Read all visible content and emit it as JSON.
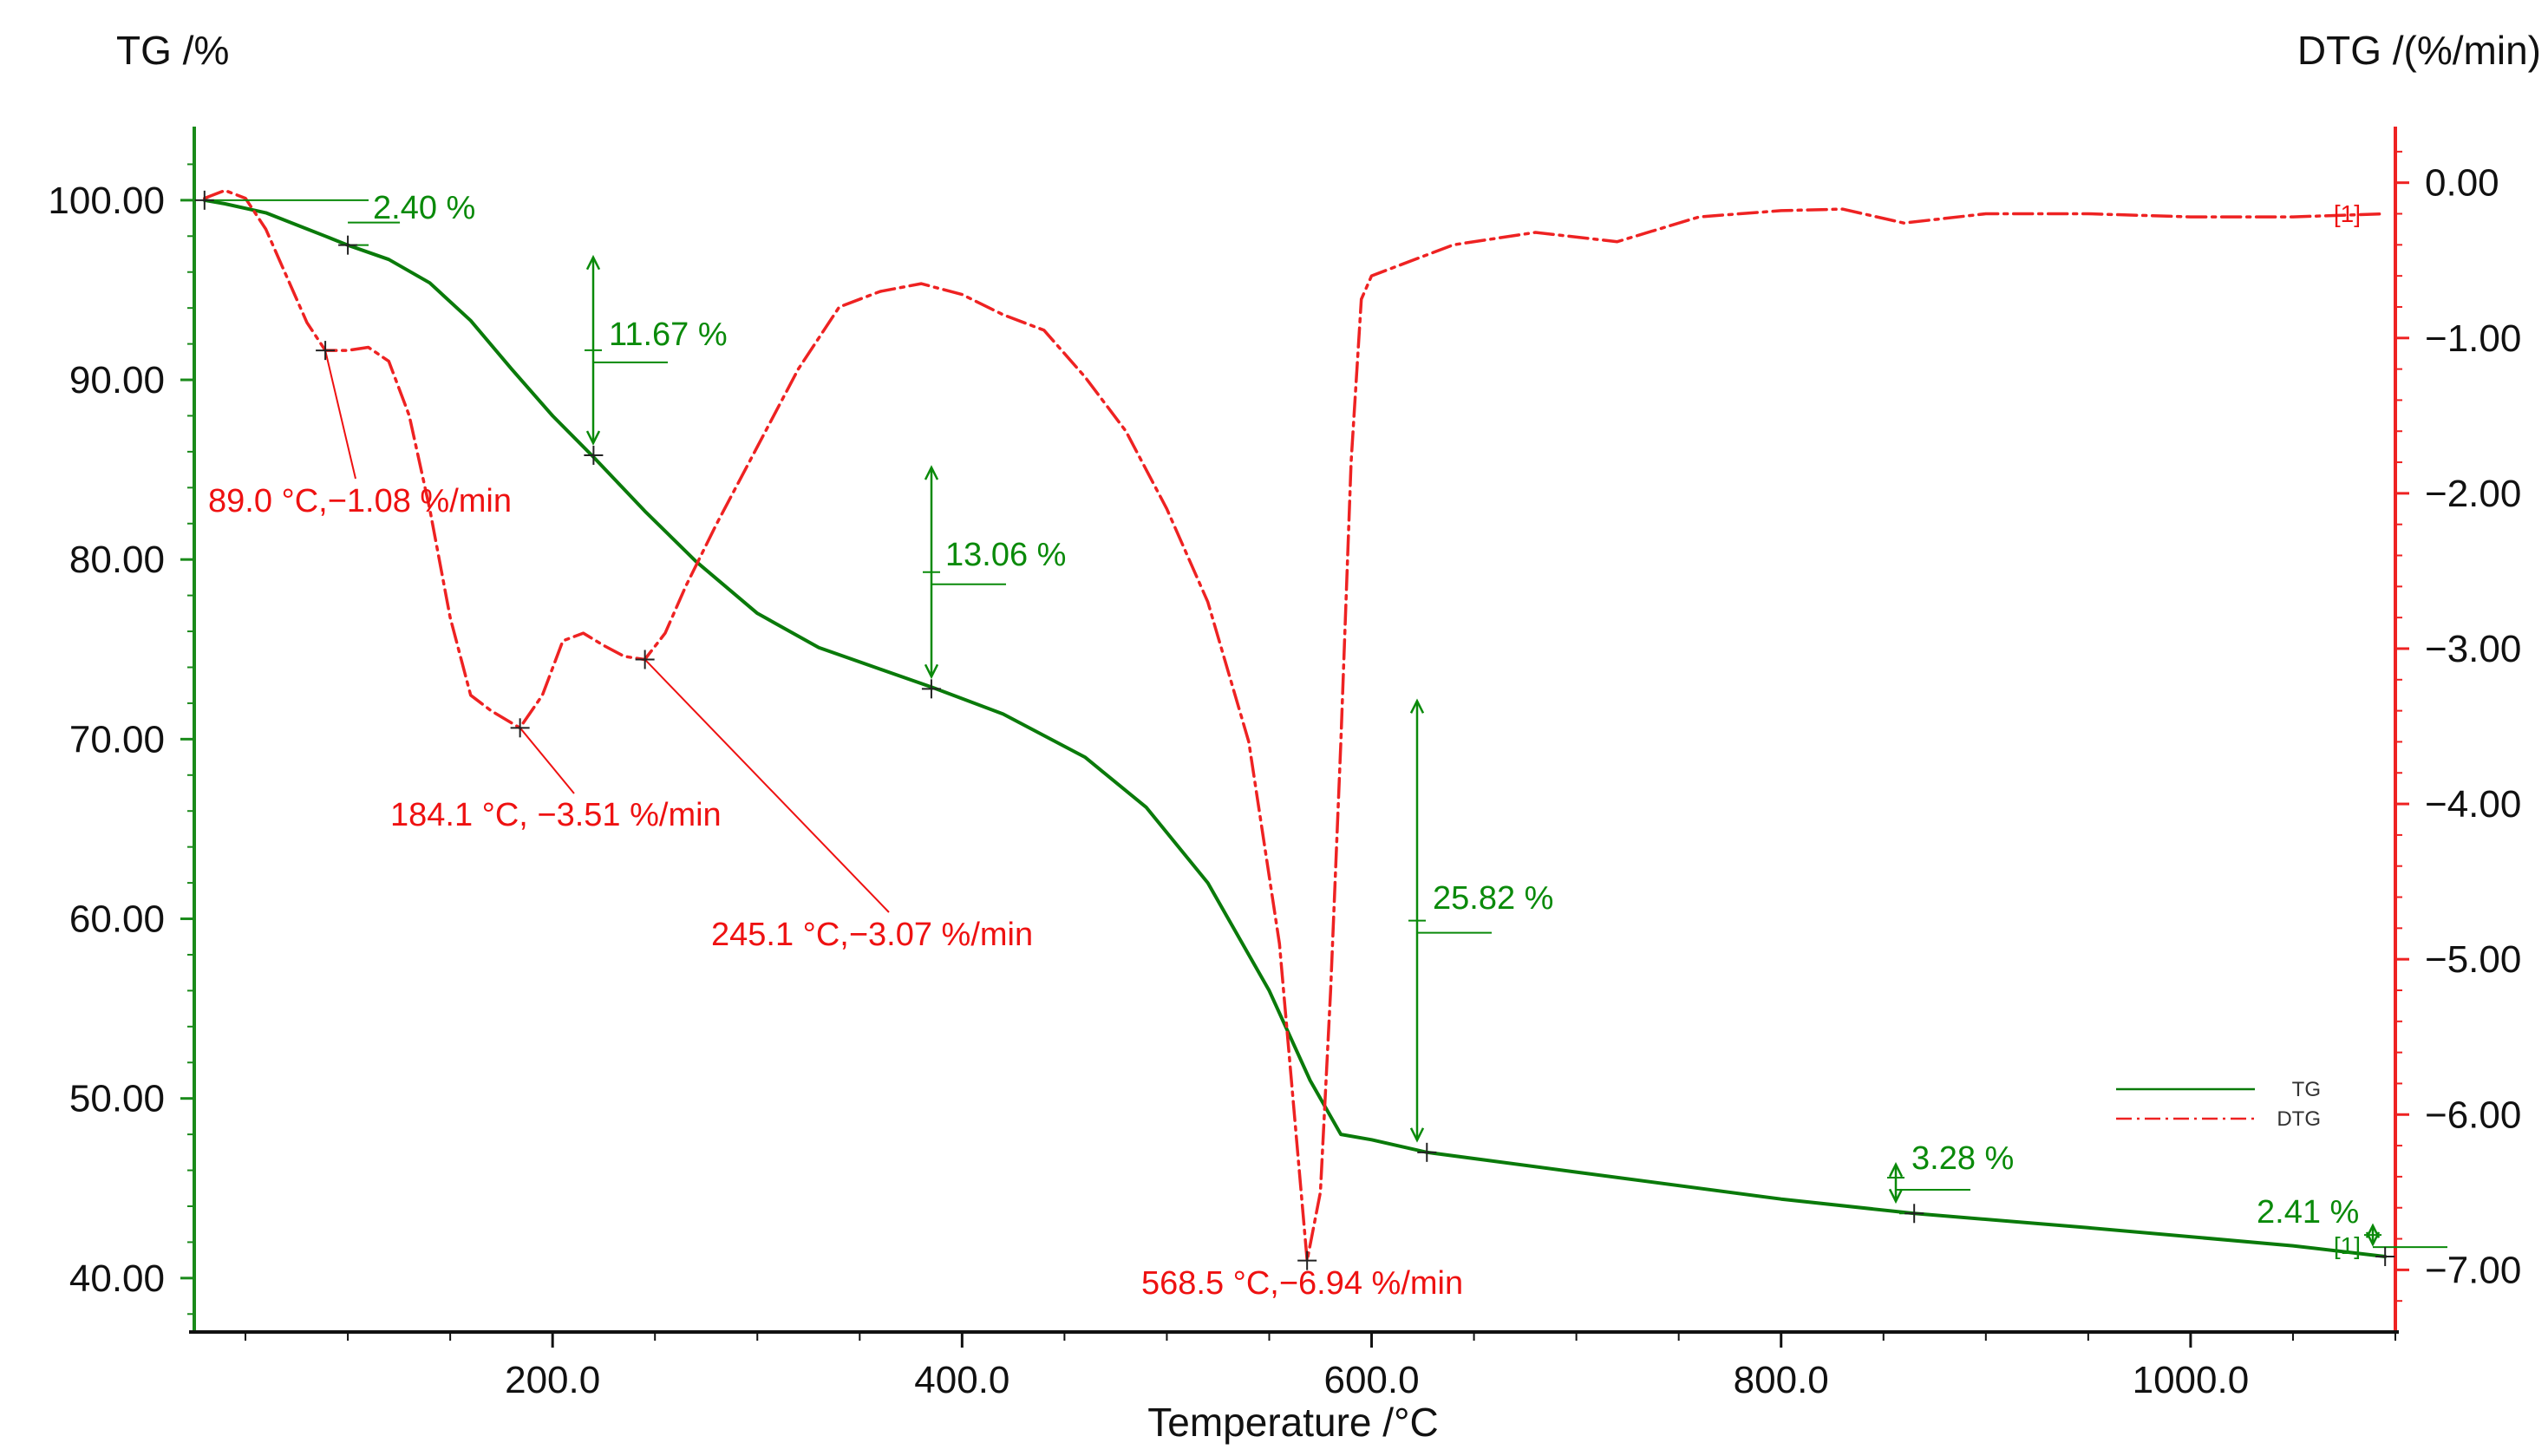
{
  "chart_data": {
    "type": "line",
    "title": "",
    "xlabel": "Temperature /°C",
    "ylabel": "TG /%",
    "y2label": "DTG /(%/min)",
    "xlim": [
      25,
      1100
    ],
    "ylim": [
      37,
      104
    ],
    "y2lim": [
      -7.4,
      0.35
    ],
    "x_ticks": [
      200,
      400,
      600,
      800,
      1000
    ],
    "x_tick_labels": [
      "200.0",
      "400.0",
      "600.0",
      "800.0",
      "1000.0"
    ],
    "y_ticks": [
      100,
      90,
      80,
      70,
      60,
      50,
      40
    ],
    "y_tick_labels": [
      "100.00",
      "90.00",
      "80.00",
      "70.00",
      "60.00",
      "50.00",
      "40.00"
    ],
    "y2_ticks": [
      0,
      -1,
      -2,
      -3,
      -4,
      -5,
      -6,
      -7
    ],
    "y2_tick_labels": [
      "0.00",
      "−1.00",
      "−2.00",
      "−3.00",
      "−4.00",
      "−5.00",
      "−6.00",
      "−7.00"
    ],
    "colors": {
      "tg": "#0a7a0a",
      "dtg": "#ee2222",
      "annotation_green": "#0a8a0a",
      "annotation_red": "#ee1111",
      "marker": "#222222"
    },
    "series": [
      {
        "name": "TG",
        "axis": "left",
        "style": "solid",
        "x": [
          30,
          40,
          60,
          80,
          89,
          100,
          120,
          140,
          160,
          180,
          200,
          220,
          245,
          270,
          300,
          330,
          360,
          385,
          420,
          460,
          490,
          520,
          550,
          570,
          585,
          600,
          627,
          700,
          800,
          865,
          950,
          1050,
          1095
        ],
        "y": [
          100.0,
          99.8,
          99.3,
          98.4,
          98.0,
          97.5,
          96.7,
          95.4,
          93.3,
          90.6,
          88.0,
          85.7,
          82.7,
          79.9,
          77.0,
          75.1,
          73.9,
          72.9,
          71.4,
          69.0,
          66.2,
          62.0,
          56.0,
          51.0,
          48.0,
          47.7,
          47.0,
          45.9,
          44.4,
          43.6,
          42.8,
          41.8,
          41.2
        ]
      },
      {
        "name": "DTG",
        "axis": "right",
        "style": "dash-dot",
        "x": [
          30,
          40,
          50,
          60,
          70,
          80,
          89,
          100,
          110,
          120,
          130,
          140,
          150,
          160,
          170,
          184,
          195,
          205,
          215,
          225,
          235,
          245,
          255,
          265,
          280,
          300,
          320,
          340,
          360,
          380,
          400,
          420,
          440,
          460,
          480,
          500,
          520,
          540,
          555,
          568.5,
          575,
          580,
          585,
          590,
          595,
          600,
          640,
          680,
          720,
          760,
          800,
          830,
          860,
          900,
          950,
          1000,
          1050,
          1095
        ],
        "y": [
          -0.1,
          -0.05,
          -0.1,
          -0.3,
          -0.6,
          -0.9,
          -1.08,
          -1.08,
          -1.06,
          -1.15,
          -1.5,
          -2.1,
          -2.8,
          -3.3,
          -3.4,
          -3.51,
          -3.3,
          -2.95,
          -2.9,
          -2.98,
          -3.05,
          -3.07,
          -2.9,
          -2.6,
          -2.2,
          -1.7,
          -1.2,
          -0.8,
          -0.7,
          -0.65,
          -0.72,
          -0.85,
          -0.95,
          -1.25,
          -1.6,
          -2.1,
          -2.7,
          -3.6,
          -4.9,
          -6.94,
          -6.5,
          -5.2,
          -3.6,
          -1.8,
          -0.75,
          -0.6,
          -0.4,
          -0.32,
          -0.38,
          -0.22,
          -0.18,
          -0.17,
          -0.26,
          -0.2,
          -0.2,
          -0.22,
          -0.22,
          -0.2
        ]
      }
    ],
    "legend": {
      "position": "lower-right",
      "entries": [
        "TG",
        "DTG"
      ]
    },
    "dtg_peaks": [
      {
        "x": 89.0,
        "y": -1.08,
        "label": "89.0 °C,−1.08 %/min"
      },
      {
        "x": 184.1,
        "y": -3.51,
        "label": "184.1 °C, −3.51 %/min"
      },
      {
        "x": 245.1,
        "y": -3.07,
        "label": "245.1 °C,−3.07 %/min"
      },
      {
        "x": 568.5,
        "y": -6.94,
        "label": "568.5 °C,−6.94 %/min"
      }
    ],
    "mass_loss_steps": [
      {
        "start_x": 30,
        "start_tg": 100.0,
        "end_x": 100,
        "end_tg": 97.5,
        "label": "2.40 %"
      },
      {
        "start_x": 100,
        "start_tg": 97.5,
        "end_x": 220,
        "end_tg": 85.8,
        "label": "11.67 %"
      },
      {
        "start_x": 220,
        "start_tg": 85.8,
        "end_x": 385,
        "end_tg": 72.8,
        "label": "13.06 %"
      },
      {
        "start_x": 385,
        "start_tg": 72.8,
        "end_x": 627,
        "end_tg": 47.0,
        "label": "25.82 %"
      },
      {
        "start_x": 627,
        "start_tg": 47.0,
        "end_x": 865,
        "end_tg": 43.6,
        "label": "3.28 %"
      },
      {
        "start_x": 865,
        "start_tg": 43.6,
        "end_x": 1095,
        "end_tg": 41.2,
        "label": "2.41 %"
      }
    ],
    "end_markers": [
      {
        "label": "[1]",
        "series": "DTG"
      },
      {
        "label": "[1]",
        "series": "TG"
      }
    ]
  }
}
